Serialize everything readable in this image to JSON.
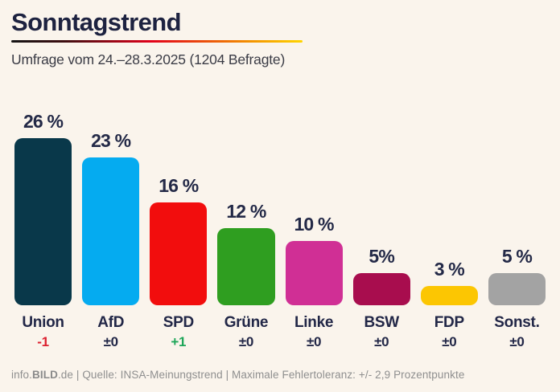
{
  "page": {
    "background": "#faf4ec"
  },
  "header": {
    "title": "Sonntagstrend",
    "subtitle": "Umfrage vom 24.–28.3.2025 (1204 Befragte)"
  },
  "chart_data": {
    "type": "bar",
    "title": "Sonntagstrend",
    "subtitle": "Umfrage vom 24.–28.3.2025 (1204 Befragte)",
    "categories": [
      "Union",
      "AfD",
      "SPD",
      "Grüne",
      "Linke",
      "BSW",
      "FDP",
      "Sonst."
    ],
    "values": [
      26,
      23,
      16,
      12,
      10,
      5,
      3,
      5
    ],
    "value_labels": [
      "26 %",
      "23 %",
      "16 %",
      "12 %",
      "10 %",
      "5%",
      "3 %",
      "5 %"
    ],
    "changes": [
      "-1",
      "±0",
      "+1",
      "±0",
      "±0",
      "±0",
      "±0",
      "±0"
    ],
    "bar_colors": [
      "#09384a",
      "#05abf0",
      "#f20d0d",
      "#2f9e20",
      "#d02f95",
      "#a80d4e",
      "#fcc602",
      "#a3a3a3"
    ],
    "change_colors": [
      "#dc2130",
      "#222747",
      "#1ea659",
      "#222747",
      "#222747",
      "#222747",
      "#222747",
      "#222747"
    ],
    "xlabel": "",
    "ylabel": "",
    "ylim": [
      0,
      26
    ],
    "grid": false,
    "legend": false
  },
  "footer": {
    "pre": "info.",
    "brand": "BILD",
    "post": ".de | Quelle: INSA-Meinungstrend | Maximale Fehlertoleranz: +/- 2,9 Prozentpunkte"
  }
}
